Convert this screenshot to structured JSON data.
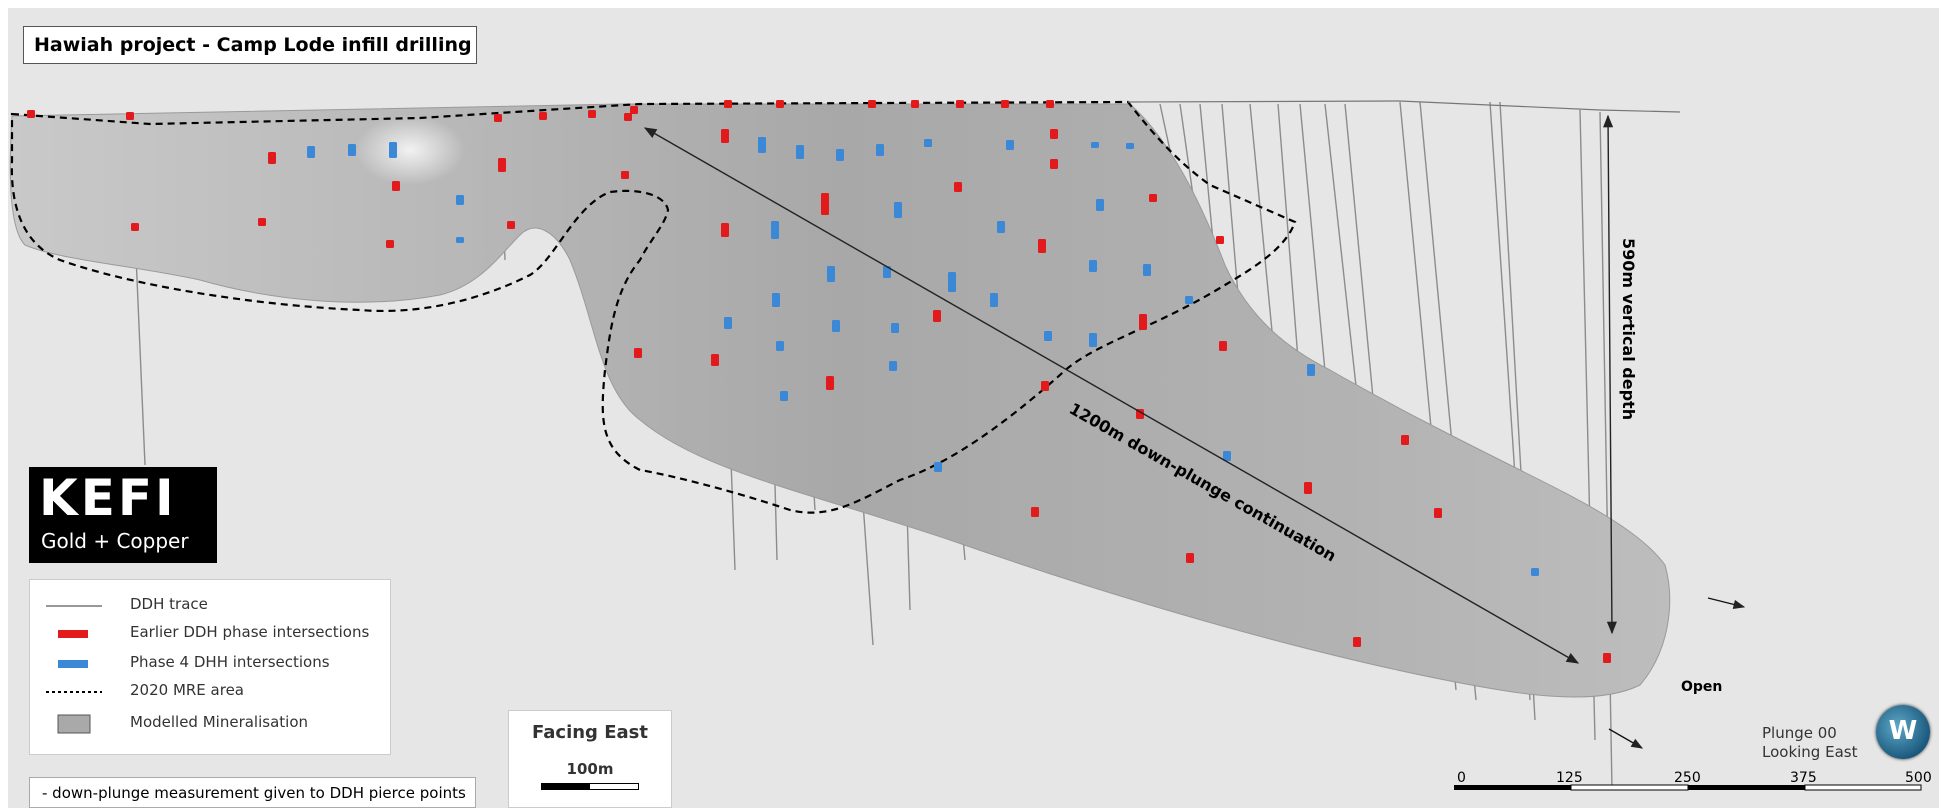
{
  "title": "Hawiah project - Camp Lode infill drilling",
  "logo": {
    "name": "KEFI",
    "tagline": "Gold + Copper"
  },
  "legend": [
    {
      "symbol": "line",
      "label": "DDH trace"
    },
    {
      "symbol": "red-bar",
      "label": "Earlier DDH phase intersections"
    },
    {
      "symbol": "blue-bar",
      "label": "Phase 4 DHH intersections"
    },
    {
      "symbol": "dotted",
      "label": "2020 MRE area"
    },
    {
      "symbol": "grey-box",
      "label": "Modelled Mineralisation"
    }
  ],
  "note": "- down-plunge measurement given to DDH pierce points",
  "facing": {
    "title": "Facing East",
    "scale": "100m"
  },
  "annotations": {
    "down_plunge": "1200m down-plunge continuation",
    "vertical_depth": "590m vertical depth",
    "open": "Open"
  },
  "view": {
    "plunge": "Plunge 00",
    "looking": "Looking East",
    "compass_letter": "W"
  },
  "scale_bar": {
    "ticks": [
      "0",
      "125",
      "250",
      "375",
      "500"
    ]
  },
  "colors": {
    "background": "#e6e6e6",
    "mineralisation": "#a9a9a9",
    "earlier_intersection": "#e31a1c",
    "phase4_intersection": "#3a88d6",
    "ddh_trace": "#8c8c8c"
  }
}
